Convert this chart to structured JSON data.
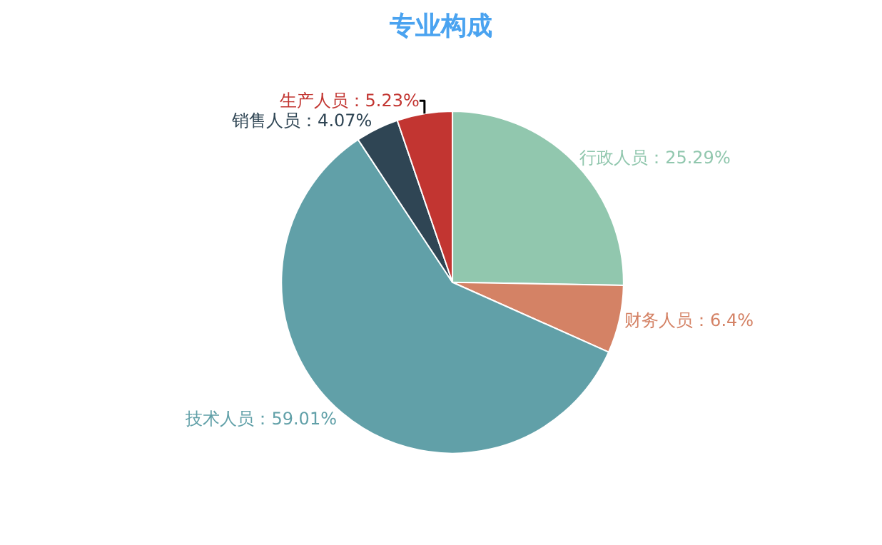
{
  "chart_data": {
    "type": "pie",
    "title": "专业构成",
    "categories": [
      "行政人员",
      "财务人员",
      "技术人员",
      "销售人员",
      "生产人员"
    ],
    "values": [
      25.29,
      6.4,
      59.01,
      4.07,
      5.23
    ],
    "colors": [
      "#91c7ae",
      "#d48265",
      "#61a0a8",
      "#2f4554",
      "#c23531"
    ],
    "value_labels": [
      "25.29%",
      "6.4%",
      "59.01%",
      "4.07%",
      "5.23%"
    ],
    "legend": false
  }
}
